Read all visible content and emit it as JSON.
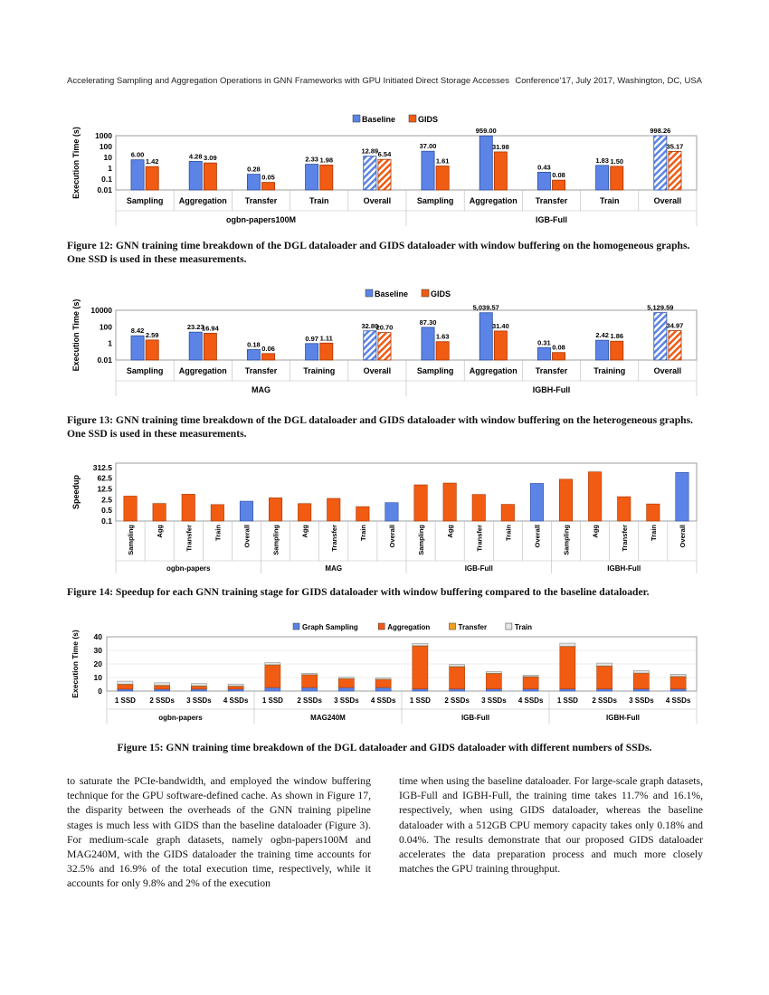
{
  "header": {
    "left": "Accelerating Sampling and Aggregation Operations in GNN Frameworks with GPU Initiated Direct Storage Accesses",
    "right": "Conference’17, July 2017, Washington, DC, USA"
  },
  "colors": {
    "baseline": "#5b84e6",
    "gids": "#f25b12",
    "transfer": "#f0a020",
    "train": "#e6e6e6"
  },
  "figure12": {
    "caption": "Figure 12: GNN training time breakdown of the DGL dataloader and GIDS dataloader with window buffering on the homogeneous graphs. One SSD is used in these measurements.",
    "chart_data": {
      "type": "bar",
      "ylabel": "Execution Time (s)",
      "yscale": "log",
      "yticks": [
        "1000",
        "100",
        "10",
        "1",
        "0.1",
        "0.01"
      ],
      "legend": [
        "Baseline",
        "GIDS"
      ],
      "categories": [
        "Sampling",
        "Aggregation",
        "Transfer",
        "Train",
        "Overall",
        "Sampling",
        "Aggregation",
        "Transfer",
        "Train",
        "Overall"
      ],
      "groups": [
        "ogbn-papers100M",
        "IGB-Full"
      ],
      "series": [
        {
          "name": "Baseline",
          "values": [
            6.0,
            4.28,
            0.28,
            2.33,
            12.89,
            37.0,
            959.0,
            0.43,
            1.83,
            998.26
          ],
          "labels": [
            "6.00",
            "4.28",
            "0.28",
            "2.33",
            "12.89",
            "37.00",
            "959.00",
            "0.43",
            "1.83",
            "998.26"
          ]
        },
        {
          "name": "GIDS",
          "values": [
            1.42,
            3.09,
            0.05,
            1.98,
            6.54,
            1.61,
            31.98,
            0.08,
            1.5,
            35.17
          ],
          "labels": [
            "1.42",
            "3.09",
            "0.05",
            "1.98",
            "6.54",
            "1.61",
            "31.98",
            "0.08",
            "1.50",
            "35.17"
          ]
        }
      ]
    }
  },
  "figure13": {
    "caption": "Figure 13: GNN training time breakdown of the DGL dataloader and GIDS dataloader with window buffering on the heterogeneous graphs. One SSD is used in these measurements.",
    "chart_data": {
      "type": "bar",
      "ylabel": "Execution Time (s)",
      "yscale": "log",
      "yticks": [
        "10000",
        "100",
        "1",
        "0.01"
      ],
      "legend": [
        "Baseline",
        "GIDS"
      ],
      "categories": [
        "Sampling",
        "Aggregation",
        "Transfer",
        "Training",
        "Overall",
        "Sampling",
        "Aggregation",
        "Transfer",
        "Training",
        "Overall"
      ],
      "groups": [
        "MAG",
        "IGBH-Full"
      ],
      "series": [
        {
          "name": "Baseline",
          "values": [
            8.42,
            23.23,
            0.18,
            0.97,
            32.8,
            87.3,
            5039.57,
            0.31,
            2.42,
            5129.59
          ],
          "labels": [
            "8.42",
            "23.23",
            "0.18",
            "0.97",
            "32.80",
            "87.30",
            "5,039.57",
            "0.31",
            "2.42",
            "5,129.59"
          ]
        },
        {
          "name": "GIDS",
          "values": [
            2.59,
            16.94,
            0.06,
            1.11,
            20.7,
            1.63,
            31.4,
            0.08,
            1.86,
            34.97
          ],
          "labels": [
            "2.59",
            "16.94",
            "0.06",
            "1.11",
            "20.70",
            "1.63",
            "31.40",
            "0.08",
            "1.86",
            "34.97"
          ]
        }
      ]
    }
  },
  "figure14": {
    "caption": "Figure 14: Speedup for each GNN training stage for GIDS dataloader with window buffering compared to the baseline dataloader.",
    "chart_data": {
      "type": "bar",
      "ylabel": "Speedup",
      "yscale": "log",
      "yticks": [
        "312.5",
        "62.5",
        "12.5",
        "2.5",
        "0.5",
        "0.1"
      ],
      "categories": [
        "Sampling",
        "Agg",
        "Transfer",
        "Train",
        "Overall",
        "Sampling",
        "Agg",
        "Transfer",
        "Train",
        "Overall",
        "Sampling",
        "Agg",
        "Transfer",
        "Train",
        "Overall",
        "Sampling",
        "Agg",
        "Transfer",
        "Train",
        "Overall"
      ],
      "groups": [
        "ogbn-papers",
        "MAG",
        "IGB-Full",
        "IGBH-Full"
      ],
      "values": [
        4.23,
        1.39,
        5.6,
        1.18,
        1.97,
        3.25,
        1.37,
        3.0,
        0.87,
        1.58,
        22.98,
        29.99,
        5.38,
        1.22,
        28.38,
        53.56,
        160.5,
        3.88,
        1.3,
        146.7
      ]
    }
  },
  "figure15": {
    "caption": "Figure 15: GNN training time breakdown of the DGL dataloader and GIDS dataloader with different numbers of SSDs.",
    "chart_data": {
      "type": "bar",
      "stacked": true,
      "ylabel": "Execution Time (s)",
      "ylim": [
        0,
        40
      ],
      "yticks": [
        "0",
        "10",
        "20",
        "30",
        "40"
      ],
      "categories": [
        "1 SSD",
        "2 SSDs",
        "3 SSDs",
        "4 SSDs",
        "1 SSD",
        "2 SSDs",
        "3 SSDs",
        "4 SSDs",
        "1 SSD",
        "2 SSDs",
        "3 SSDs",
        "4 SSDs",
        "1 SSD",
        "2 SSDs",
        "3 SSDs",
        "4 SSDs"
      ],
      "groups": [
        "ogbn-papers",
        "MAG240M",
        "IGB-Full",
        "IGBH-Full"
      ],
      "series": [
        {
          "name": "Graph Sampling",
          "values": [
            1.4,
            1.4,
            1.4,
            1.4,
            2.6,
            2.6,
            2.6,
            2.6,
            1.6,
            1.6,
            1.6,
            1.6,
            1.6,
            1.6,
            1.6,
            1.6
          ]
        },
        {
          "name": "Aggregation",
          "values": [
            3.4,
            2.6,
            2.2,
            2.0,
            16.6,
            9.3,
            6.5,
            5.9,
            31.5,
            16.2,
            11.2,
            8.8,
            31.2,
            16.8,
            11.5,
            9.0
          ]
        },
        {
          "name": "Transfer",
          "values": [
            0.3,
            0.3,
            0.3,
            0.3,
            0.2,
            0.2,
            0.2,
            0.2,
            0.3,
            0.3,
            0.3,
            0.3,
            0.2,
            0.2,
            0.2,
            0.2
          ]
        },
        {
          "name": "Train",
          "values": [
            2.2,
            1.8,
            1.6,
            1.5,
            1.5,
            1.0,
            0.9,
            0.8,
            1.8,
            1.4,
            1.2,
            1.0,
            2.3,
            2.0,
            1.8,
            1.7
          ]
        }
      ]
    }
  },
  "body": {
    "left": "to saturate the PCIe-bandwidth, and employed the window buffering technique for the GPU software-defined cache. As shown in Figure 17, the disparity between the overheads of the GNN training pipeline stages is much less with GIDS than the baseline dataloader (Figure 3). For medium-scale graph datasets, namely ogbn-papers100M and MAG240M, with the GIDS dataloader the training time accounts for 32.5% and 16.9% of the total execution time, respectively, while it accounts for only 9.8% and 2% of the execution",
    "right": "time when using the baseline dataloader. For large-scale graph datasets, IGB-Full and IGBH-Full, the training time takes 11.7% and 16.1%, respectively, when using GIDS dataloader, whereas the baseline dataloader with a 512GB CPU memory capacity takes only 0.18% and 0.04%. The results demonstrate that our proposed GIDS dataloader accelerates the data preparation process and much more closely matches the GPU training throughput."
  }
}
